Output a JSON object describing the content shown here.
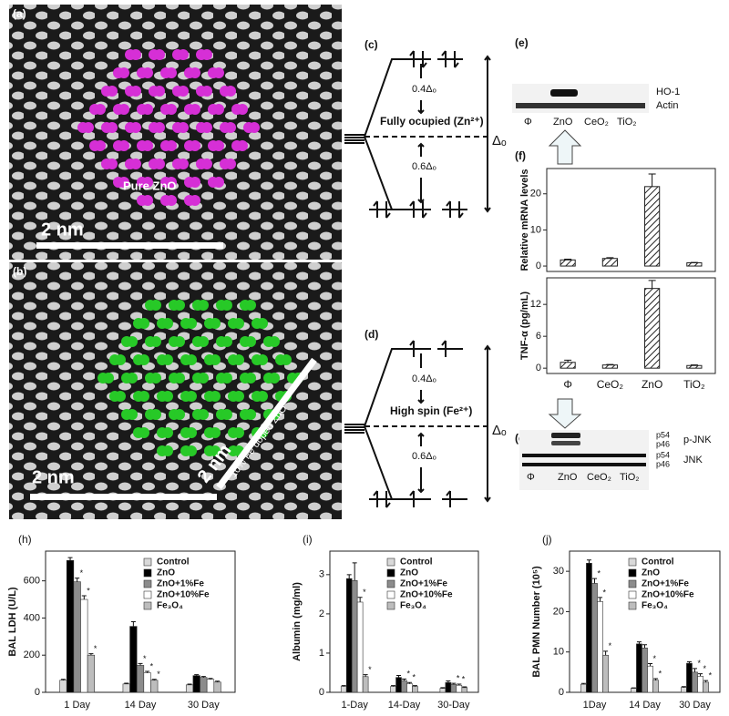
{
  "panels": {
    "a": {
      "label": "(a)",
      "caption": "Pure ZnO",
      "scale": "2 nm"
    },
    "b": {
      "label": "(b)",
      "caption": "10% Fe doped ZnO",
      "scale": "2 nm",
      "scale2": "2 nm"
    },
    "c": {
      "label": "(c)",
      "upper": "0.4Δₒ",
      "state": "Fully ocupied (Zn²⁺)",
      "split": "Δₒ",
      "lower": "0.6Δₒ"
    },
    "d": {
      "label": "(d)",
      "upper": "0.4Δₒ",
      "state": "High spin (Fe²⁺)",
      "split": "Δₒ",
      "lower": "0.6Δₒ"
    },
    "e": {
      "label": "(e)",
      "bands": [
        "HO-1",
        "Actin"
      ],
      "lanes": [
        "Φ",
        "ZnO",
        "CeO₂",
        "TiO₂"
      ]
    },
    "f": {
      "label": "(f)"
    },
    "g": {
      "label": "(g)",
      "bands": [
        "p54",
        "p46",
        "p54",
        "p46"
      ],
      "groups": [
        "p-JNK",
        "JNK"
      ],
      "lanes": [
        "Φ",
        "ZnO",
        "CeO₂",
        "TiO₂"
      ]
    }
  },
  "chart_data": [
    {
      "type": "bar",
      "ylabel": "Relative mRNA levels",
      "values": [
        1.7,
        2.1,
        22,
        0.9
      ],
      "errors": [
        0.2,
        0.2,
        3.5,
        0.1
      ],
      "color": "#222",
      "ylim": [
        -1.5,
        27
      ],
      "yticks": [
        0,
        10,
        20
      ]
    },
    {
      "type": "bar",
      "ylabel": "TNF-α (pg/mL)",
      "categories": [
        "Φ",
        "CeO₂",
        "ZnO",
        "TiO₂"
      ],
      "values": [
        1.1,
        0.6,
        15,
        0.5
      ],
      "errors": [
        0.4,
        0.1,
        1.5,
        0.1
      ],
      "color": "#222",
      "ylim": [
        -1,
        17
      ],
      "yticks": [
        0,
        6,
        12
      ]
    },
    {
      "type": "grouped_bar",
      "label": "(h)",
      "ylabel": "BAL LDH (U/L)",
      "categories": [
        "1 Day",
        "14 Day",
        "30 Day"
      ],
      "ylim": [
        0,
        760
      ],
      "yticks": [
        0,
        200,
        400,
        600
      ],
      "series": [
        {
          "name": "Control",
          "color": "#d9d9d9",
          "values": [
            65,
            45,
            40
          ],
          "errors": [
            5,
            4,
            4
          ],
          "labels": [
            null,
            null,
            null
          ]
        },
        {
          "name": "ZnO",
          "color": "#000000",
          "values": [
            710,
            355,
            90
          ],
          "errors": [
            15,
            25,
            5
          ],
          "labels": [
            null,
            null,
            null
          ]
        },
        {
          "name": "ZnO+1%Fe",
          "color": "#8c8c8c",
          "values": [
            595,
            145,
            80
          ],
          "errors": [
            20,
            10,
            5
          ],
          "labels": [
            "*",
            "*",
            null
          ]
        },
        {
          "name": "ZnO+10%Fe",
          "color": "#ffffff",
          "values": [
            500,
            105,
            70
          ],
          "errors": [
            20,
            8,
            5
          ],
          "labels": [
            "*",
            "*",
            null
          ]
        },
        {
          "name": "Fe₃O₄",
          "color": "#bdbdbd",
          "values": [
            200,
            65,
            55
          ],
          "errors": [
            8,
            5,
            5
          ],
          "labels": [
            "*",
            "*",
            null
          ]
        }
      ]
    },
    {
      "type": "grouped_bar",
      "label": "(i)",
      "ylabel": "Albumin (mg/ml)",
      "categories": [
        "1-Day",
        "14-Day",
        "30-Day"
      ],
      "ylim": [
        0,
        3.6
      ],
      "yticks": [
        0,
        1,
        2,
        3
      ],
      "series": [
        {
          "name": "Control",
          "color": "#d9d9d9",
          "values": [
            0.15,
            0.15,
            0.1
          ],
          "errors": [
            0.02,
            0.02,
            0.02
          ],
          "labels": [
            null,
            null,
            null
          ]
        },
        {
          "name": "ZnO",
          "color": "#000000",
          "values": [
            2.9,
            0.38,
            0.25
          ],
          "errors": [
            0.1,
            0.05,
            0.04
          ],
          "labels": [
            null,
            null,
            null
          ]
        },
        {
          "name": "ZnO+1%Fe",
          "color": "#8c8c8c",
          "values": [
            2.85,
            0.3,
            0.2
          ],
          "errors": [
            0.45,
            0.04,
            0.03
          ],
          "labels": [
            null,
            "*",
            "*"
          ]
        },
        {
          "name": "ZnO+10%Fe",
          "color": "#ffffff",
          "values": [
            2.3,
            0.22,
            0.18
          ],
          "errors": [
            0.12,
            0.03,
            0.03
          ],
          "labels": [
            "*",
            "*",
            "*"
          ]
        },
        {
          "name": "Fe₃O₄",
          "color": "#bdbdbd",
          "values": [
            0.4,
            0.15,
            0.12
          ],
          "errors": [
            0.05,
            0.02,
            0.02
          ],
          "labels": [
            "*",
            null,
            null
          ]
        }
      ]
    },
    {
      "type": "grouped_bar",
      "label": "(j)",
      "ylabel": "BAL PMN Number (10⁵)",
      "categories": [
        "1Day",
        "14 Day",
        "30 Day"
      ],
      "ylim": [
        0,
        35
      ],
      "yticks": [
        0,
        10,
        20,
        30
      ],
      "series": [
        {
          "name": "Control",
          "color": "#d9d9d9",
          "values": [
            2,
            1,
            1.2
          ],
          "errors": [
            0.2,
            0.1,
            0.2
          ],
          "labels": [
            null,
            null,
            null
          ]
        },
        {
          "name": "ZnO",
          "color": "#000000",
          "values": [
            32,
            12,
            7.2
          ],
          "errors": [
            0.8,
            0.5,
            0.4
          ],
          "labels": [
            null,
            null,
            null
          ]
        },
        {
          "name": "ZnO+1%Fe",
          "color": "#8c8c8c",
          "values": [
            27,
            11,
            5
          ],
          "errors": [
            1.2,
            0.8,
            0.9
          ],
          "labels": [
            "*",
            null,
            "*"
          ]
        },
        {
          "name": "ZnO+10%Fe",
          "color": "#ffffff",
          "values": [
            22.5,
            6.5,
            4
          ],
          "errors": [
            1,
            0.6,
            0.6
          ],
          "labels": [
            "*",
            "*",
            "*"
          ]
        },
        {
          "name": "Fe₃O₄",
          "color": "#bdbdbd",
          "values": [
            9.2,
            3,
            2.5
          ],
          "errors": [
            1,
            0.4,
            0.4
          ],
          "labels": [
            "*",
            "*",
            "*"
          ]
        }
      ]
    }
  ]
}
